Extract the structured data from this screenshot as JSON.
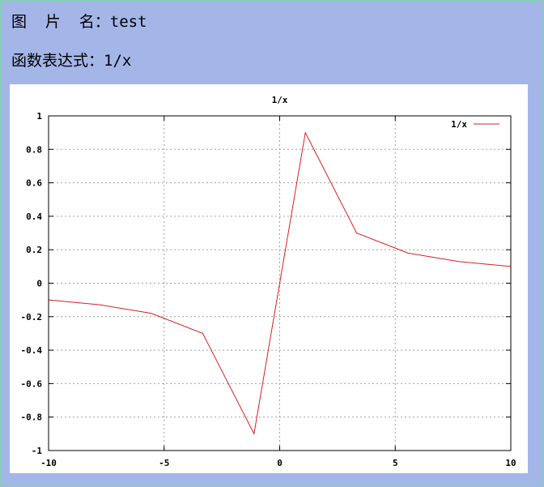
{
  "header": {
    "name_label": "图  片  名：",
    "name_value": "test",
    "expr_label": "函数表达式：",
    "expr_value": "1/x"
  },
  "chart_data": {
    "type": "line",
    "title": "1/x",
    "xlabel": "",
    "ylabel": "",
    "xlim": [
      -10,
      10
    ],
    "ylim": [
      -1,
      1
    ],
    "x_ticks": [
      -10,
      -5,
      0,
      5,
      10
    ],
    "y_ticks": [
      -1,
      -0.8,
      -0.6,
      -0.4,
      -0.2,
      0,
      0.2,
      0.4,
      0.6,
      0.8,
      1
    ],
    "x_tick_labels": [
      "-10",
      "-5",
      "0",
      "5",
      "10"
    ],
    "y_tick_labels": [
      "-1",
      "-0.8",
      "-0.6",
      "-0.4",
      "-0.2",
      "0",
      "0.2",
      "0.4",
      "0.6",
      "0.8",
      "1"
    ],
    "grid": true,
    "legend_position": "top-right",
    "series": [
      {
        "name": "1/x",
        "color": "#d62020",
        "x": [
          -10,
          -7.78,
          -5.56,
          -3.33,
          -1.11,
          1.11,
          3.33,
          5.56,
          7.78,
          10
        ],
        "y": [
          -0.1,
          -0.129,
          -0.18,
          -0.3,
          -0.9,
          0.9,
          0.3,
          0.18,
          0.129,
          0.1
        ]
      }
    ]
  }
}
